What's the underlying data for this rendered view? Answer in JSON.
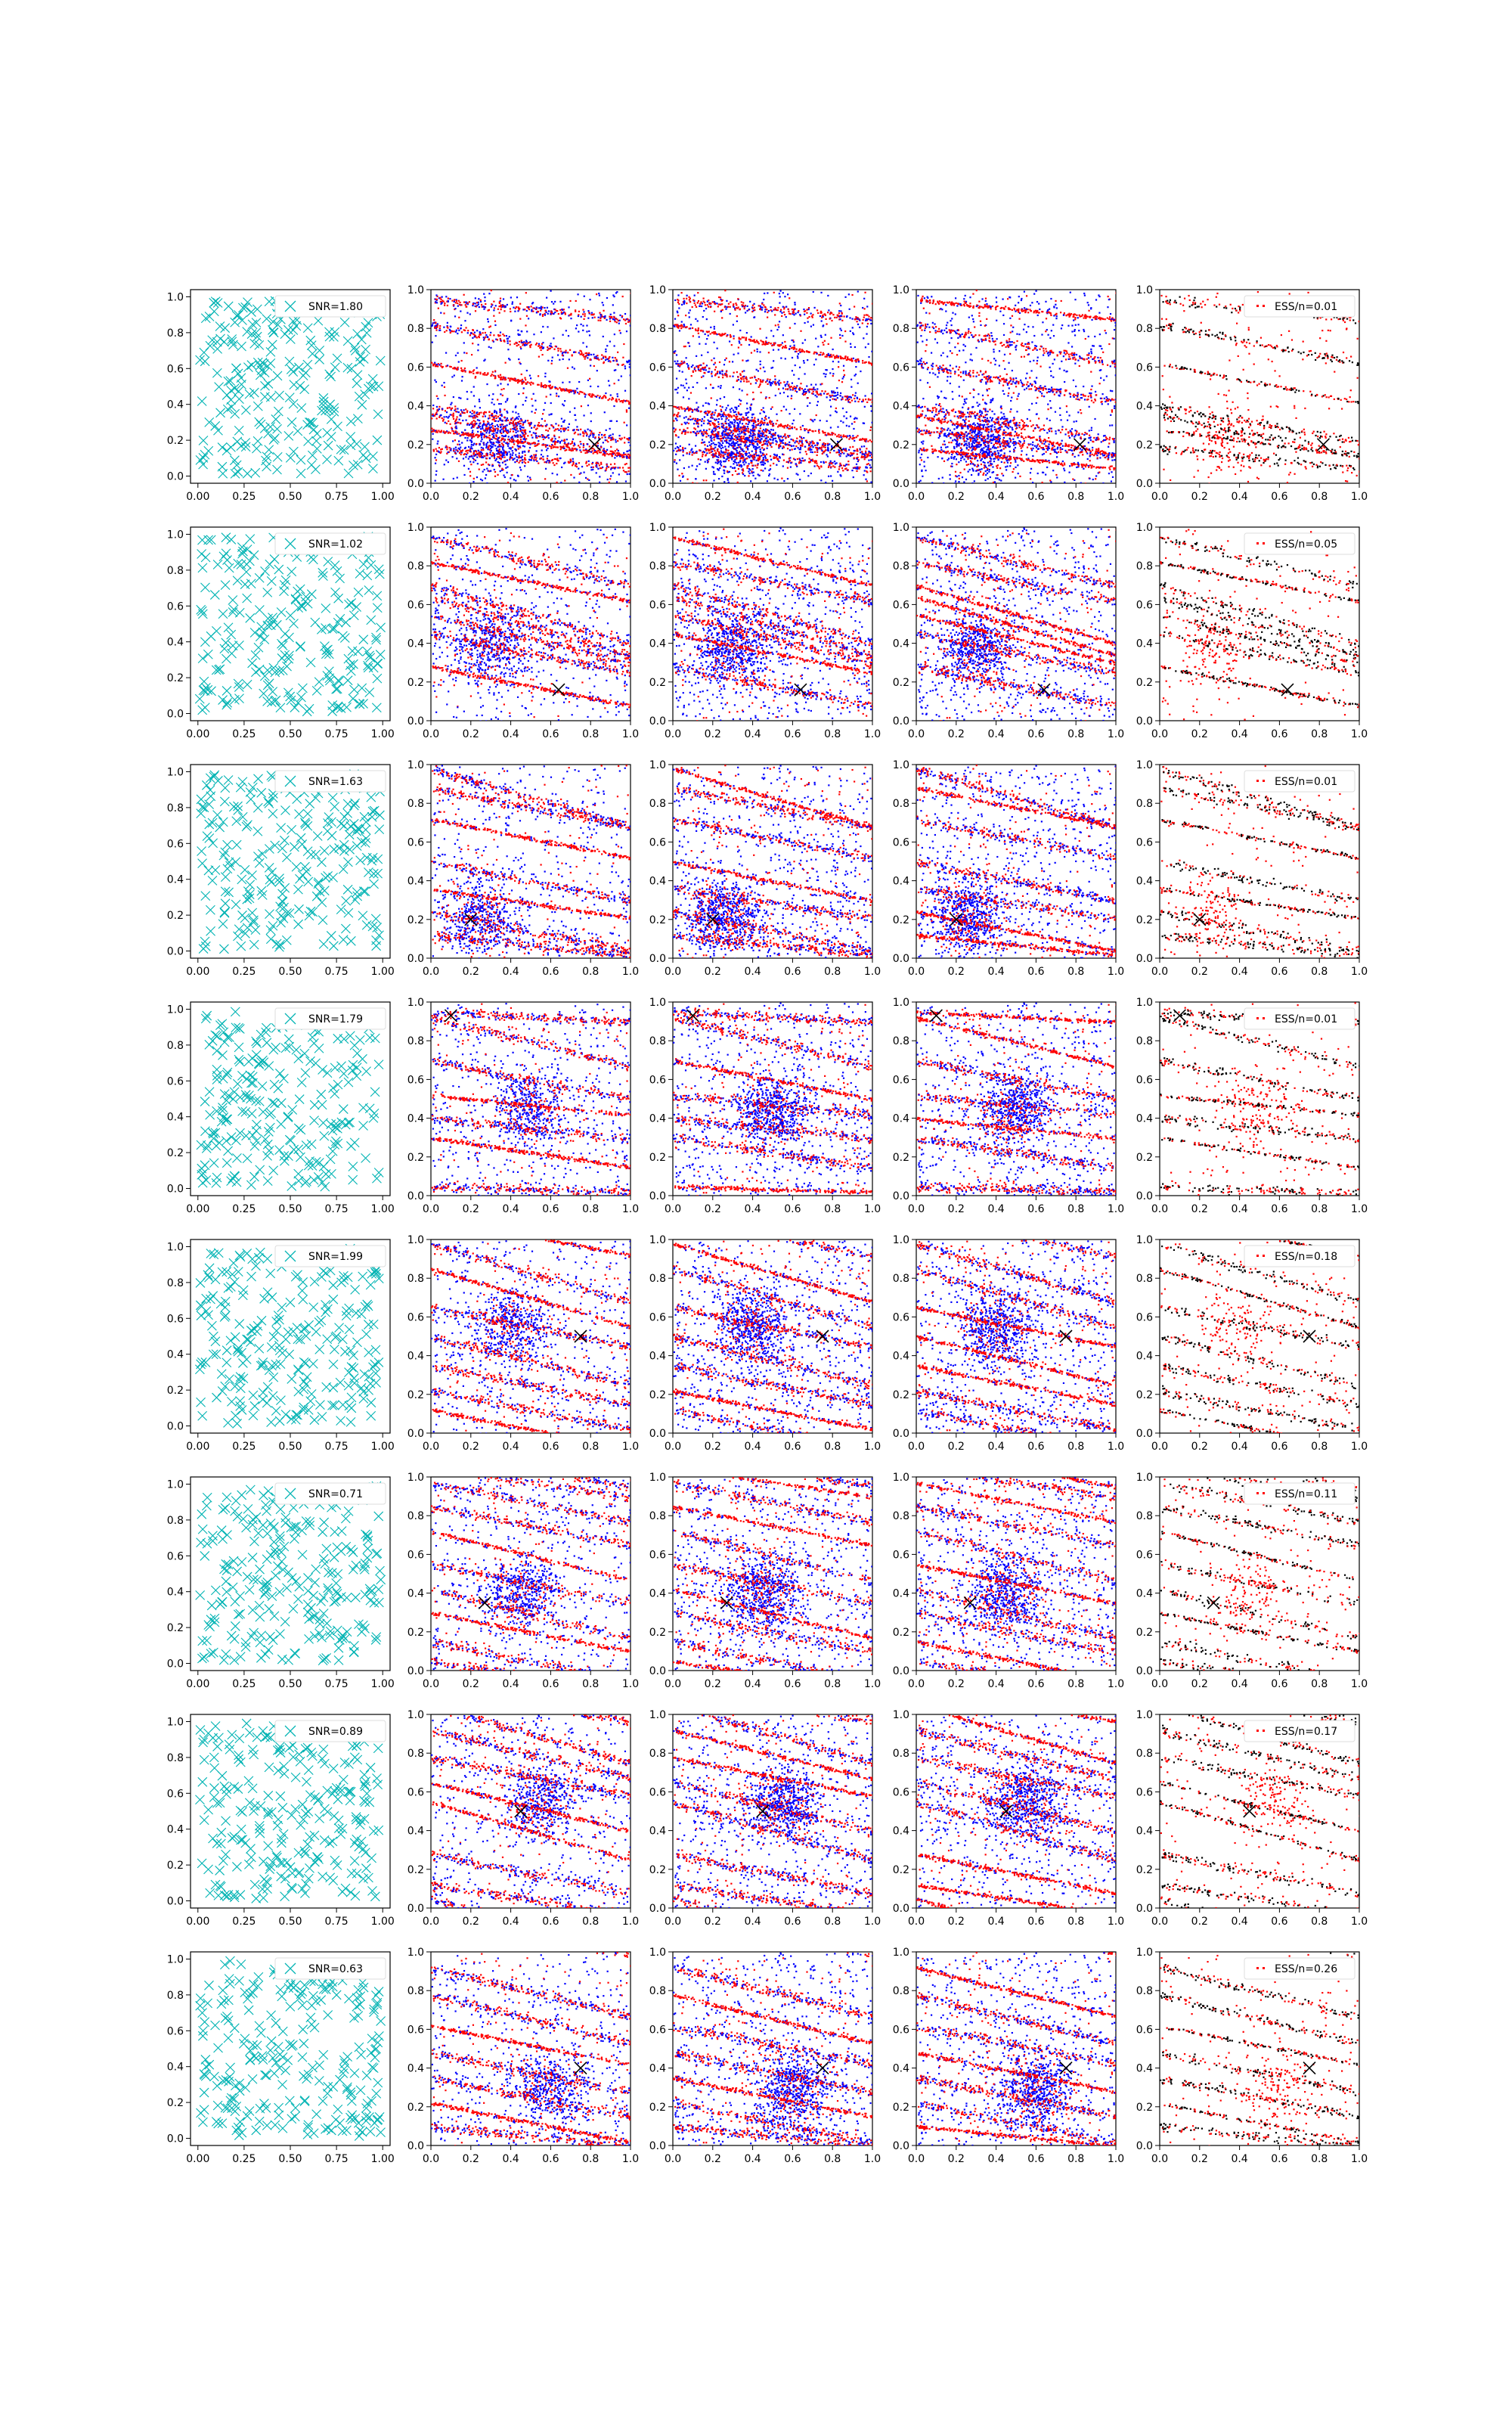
{
  "colors": {
    "observed_markers": "#00b3b3",
    "sample_a": "#0000ff",
    "sample_b": "#ff0000",
    "weighted_samples": "#000000",
    "marker_x": "#000000",
    "axes": "#000000",
    "background": "#ffffff"
  },
  "axes": {
    "column_1": {
      "xlim": [
        -0.04,
        1.04
      ],
      "ylim": [
        -0.04,
        1.04
      ],
      "xticks": [
        "0.00",
        "0.25",
        "0.50",
        "0.75",
        "1.00"
      ],
      "yticks": [
        "0.0",
        "0.2",
        "0.4",
        "0.6",
        "0.8",
        "1.0"
      ]
    },
    "columns_2_to_5": {
      "xlim": [
        0,
        1
      ],
      "ylim": [
        0,
        1
      ],
      "xticks": [
        "0.0",
        "0.2",
        "0.4",
        "0.6",
        "0.8",
        "1.0"
      ],
      "yticks": [
        "0.0",
        "0.2",
        "0.4",
        "0.6",
        "0.8",
        "1.0"
      ]
    }
  },
  "chart_data": {
    "type": "scatter",
    "grid": false,
    "layout": "8 rows x 5 columns of scatter panels",
    "legend_placement": "top-right",
    "column_descriptions": [
      "observed points (cyan x markers)",
      "samples (blue and red dots), true location marked with black x",
      "samples (blue and red dots), true location marked with black x",
      "samples (blue and red dots), true location marked with black x",
      "weighted samples (black and red dots), true location marked with black x"
    ],
    "rows": [
      {
        "snr_label": "SNR=1.80",
        "ess_label": "ESS/n=0.01",
        "true_point": [
          0.82,
          0.2
        ],
        "lines": [
          [
            0.35,
            -0.2
          ],
          [
            0.4,
            -0.18
          ],
          [
            0.28,
            -0.14
          ],
          [
            0.95,
            -0.1
          ],
          [
            0.82,
            -0.2
          ],
          [
            0.62,
            -0.2
          ],
          [
            0.18,
            -0.1
          ]
        ],
        "focus": [
          0.32,
          0.22
        ]
      },
      {
        "snr_label": "SNR=1.02",
        "ess_label": "ESS/n=0.05",
        "true_point": [
          0.64,
          0.16
        ],
        "lines": [
          [
            0.7,
            -0.3
          ],
          [
            0.95,
            -0.25
          ],
          [
            0.82,
            -0.2
          ],
          [
            0.64,
            -0.3
          ],
          [
            0.45,
            -0.2
          ],
          [
            0.28,
            -0.2
          ],
          [
            0.55,
            -0.25
          ]
        ],
        "focus": [
          0.3,
          0.38
        ]
      },
      {
        "snr_label": "SNR=1.63",
        "ess_label": "ESS/n=0.01",
        "true_point": [
          0.2,
          0.2
        ],
        "lines": [
          [
            0.24,
            -0.2
          ],
          [
            0.5,
            -0.2
          ],
          [
            0.72,
            -0.2
          ],
          [
            0.88,
            -0.2
          ],
          [
            0.98,
            -0.3
          ],
          [
            0.36,
            -0.15
          ],
          [
            0.12,
            -0.1
          ]
        ],
        "focus": [
          0.25,
          0.22
        ]
      },
      {
        "snr_label": "SNR=1.79",
        "ess_label": "ESS/n=0.01",
        "true_point": [
          0.1,
          0.93
        ],
        "lines": [
          [
            0.95,
            -0.05
          ],
          [
            0.05,
            -0.03
          ],
          [
            0.52,
            -0.1
          ],
          [
            0.4,
            -0.1
          ],
          [
            0.7,
            -0.2
          ],
          [
            0.3,
            -0.15
          ],
          [
            0.92,
            -0.25
          ]
        ],
        "focus": [
          0.5,
          0.45
        ]
      },
      {
        "snr_label": "SNR=1.99",
        "ess_label": "ESS/n=0.18",
        "true_point": [
          0.75,
          0.5
        ],
        "lines": [
          [
            0.65,
            -0.2
          ],
          [
            0.98,
            -0.3
          ],
          [
            0.85,
            -0.3
          ],
          [
            0.35,
            -0.2
          ],
          [
            0.22,
            -0.2
          ],
          [
            0.12,
            -0.2
          ],
          [
            0.5,
            -0.25
          ]
        ],
        "focus": [
          0.4,
          0.55
        ]
      },
      {
        "snr_label": "SNR=0.71",
        "ess_label": "ESS/n=0.11",
        "true_point": [
          0.27,
          0.35
        ],
        "lines": [
          [
            0.97,
            -0.2
          ],
          [
            0.85,
            -0.2
          ],
          [
            0.72,
            -0.25
          ],
          [
            0.55,
            -0.2
          ],
          [
            0.42,
            -0.25
          ],
          [
            0.3,
            -0.2
          ],
          [
            0.15,
            -0.2
          ],
          [
            0.05,
            -0.15
          ]
        ],
        "focus": [
          0.45,
          0.4
        ]
      },
      {
        "snr_label": "SNR=0.89",
        "ess_label": "ESS/n=0.17",
        "true_point": [
          0.45,
          0.5
        ],
        "lines": [
          [
            1.05,
            -0.3
          ],
          [
            0.78,
            -0.2
          ],
          [
            0.55,
            -0.3
          ],
          [
            0.28,
            -0.2
          ],
          [
            0.92,
            -0.25
          ],
          [
            0.65,
            -0.25
          ],
          [
            0.12,
            -0.15
          ]
        ],
        "focus": [
          0.55,
          0.55
        ]
      },
      {
        "snr_label": "SNR=0.63",
        "ess_label": "ESS/n=0.26",
        "true_point": [
          0.75,
          0.4
        ],
        "lines": [
          [
            0.92,
            -0.25
          ],
          [
            0.78,
            -0.25
          ],
          [
            0.62,
            -0.2
          ],
          [
            0.48,
            -0.2
          ],
          [
            0.35,
            -0.2
          ],
          [
            0.22,
            -0.2
          ],
          [
            0.1,
            -0.1
          ]
        ],
        "focus": [
          0.6,
          0.3
        ]
      }
    ]
  }
}
